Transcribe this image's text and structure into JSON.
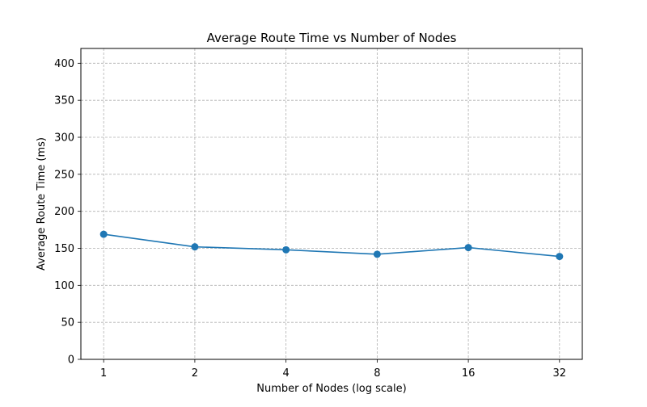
{
  "chart_data": {
    "type": "line",
    "title": "Average Route Time vs Number of Nodes",
    "xlabel": "Number of Nodes (log scale)",
    "ylabel": "Average Route Time (ms)",
    "xscale": "log2",
    "x": [
      1,
      2,
      4,
      8,
      16,
      32
    ],
    "xticks": [
      "1",
      "2",
      "4",
      "8",
      "16",
      "32"
    ],
    "ylim": [
      0,
      420
    ],
    "yticks": [
      0,
      50,
      100,
      150,
      200,
      250,
      300,
      350,
      400
    ],
    "grid": true,
    "series": [
      {
        "values": [
          169,
          152,
          148,
          142,
          151,
          139
        ],
        "color": "#1f77b4",
        "marker": "circle"
      }
    ]
  }
}
